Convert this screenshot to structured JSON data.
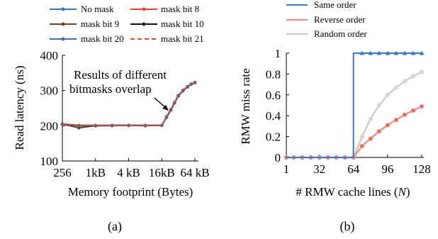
{
  "colors": {
    "no_mask": "#3a78b6",
    "mask_bit_8": "#e24a2c",
    "mask_bit_9": "#6b4a2a",
    "mask_bit_10": "#111111",
    "mask_bit_20": "#3f6fb0",
    "mask_bit_21": "#e24a2c",
    "same_order": "#3a7cc2",
    "reverse_order": "#f08a7e",
    "reverse_marker": "#d9402b",
    "random_order": "#c8c8c8",
    "random_marker": "#b0b0b0"
  },
  "chart_data": [
    {
      "type": "line",
      "caption": "(a)",
      "xlabel": "Memory footprint (Bytes)",
      "ylabel": "Read latency (ns)",
      "xscale": "log2",
      "x_ticks": [
        "256",
        "1kB",
        "4 kB",
        "16kB",
        "64 kB"
      ],
      "x_tick_values": [
        256,
        1024,
        4096,
        16384,
        65536
      ],
      "ylim": [
        100,
        400
      ],
      "y_ticks": [
        "100",
        "200",
        "300",
        "400"
      ],
      "annotation": [
        "Results of different",
        "bitmasks overlap"
      ],
      "x": [
        256,
        512,
        1024,
        2048,
        4096,
        8192,
        16384,
        20000,
        24000,
        28000,
        32768,
        40000,
        48000,
        56000,
        65536
      ],
      "series": [
        {
          "name": "No mask",
          "color_key": "no_mask",
          "marker": "circle",
          "values": [
            205,
            201,
            201,
            201,
            201,
            201,
            201,
            225,
            245,
            265,
            285,
            300,
            310,
            318,
            323
          ]
        },
        {
          "name": "mask bit 8",
          "color_key": "mask_bit_8",
          "marker": "circle",
          "values": [
            204,
            200,
            200,
            201,
            201,
            201,
            201,
            224,
            246,
            266,
            286,
            301,
            311,
            318,
            323
          ]
        },
        {
          "name": "mask bit 9",
          "color_key": "mask_bit_9",
          "marker": "circle",
          "values": [
            205,
            194,
            200,
            200,
            201,
            200,
            201,
            226,
            246,
            266,
            285,
            300,
            310,
            318,
            322
          ]
        },
        {
          "name": "mask bit 10",
          "color_key": "mask_bit_10",
          "marker": "diamond",
          "values": [
            204,
            200,
            200,
            201,
            201,
            201,
            201,
            224,
            245,
            265,
            285,
            300,
            311,
            318,
            323
          ]
        },
        {
          "name": "mask bit 20",
          "color_key": "mask_bit_20",
          "marker": "circle",
          "values": [
            205,
            201,
            201,
            201,
            201,
            201,
            201,
            225,
            246,
            266,
            286,
            301,
            311,
            318,
            323
          ]
        },
        {
          "name": "mask bit 21",
          "color_key": "mask_bit_21",
          "marker": "dash",
          "dashed": true,
          "values": [
            204,
            201,
            201,
            201,
            201,
            201,
            201,
            226,
            247,
            267,
            287,
            301,
            311,
            319,
            324
          ]
        }
      ],
      "legend_placement": "top"
    },
    {
      "type": "line",
      "caption": "(b)",
      "xlabel_prefix": "# RMW cache lines (",
      "xlabel_var": "N",
      "xlabel_suffix": ")",
      "ylabel": "RMW miss rate",
      "xlim": [
        1,
        128
      ],
      "x_ticks": [
        "1",
        "32",
        "64",
        "96",
        "128"
      ],
      "x_tick_values": [
        1,
        32,
        64,
        96,
        128
      ],
      "ylim": [
        0,
        1
      ],
      "y_ticks": [
        "0",
        "0.2",
        "0.4",
        "0.6",
        "0.8",
        "1"
      ],
      "series": [
        {
          "name": "Same order",
          "color_key": "same_order",
          "marker": "triangle",
          "x": [
            1,
            8,
            16,
            24,
            32,
            40,
            48,
            56,
            64,
            64,
            72,
            80,
            88,
            96,
            104,
            112,
            120,
            128
          ],
          "values": [
            0,
            0,
            0,
            0,
            0,
            0,
            0,
            0,
            0,
            1,
            1,
            1,
            1,
            1,
            1,
            1,
            1,
            1
          ]
        },
        {
          "name": "Reverse order",
          "color_key": "reverse_order",
          "marker": "dot",
          "x": [
            1,
            8,
            16,
            24,
            32,
            40,
            48,
            56,
            64,
            72,
            80,
            88,
            96,
            104,
            112,
            120,
            128
          ],
          "values": [
            0,
            0,
            0,
            0,
            0,
            0,
            0,
            0,
            0,
            0.11,
            0.18,
            0.25,
            0.31,
            0.36,
            0.41,
            0.45,
            0.49
          ]
        },
        {
          "name": "Random order",
          "color_key": "random_order",
          "marker": "dot",
          "x": [
            1,
            8,
            16,
            24,
            32,
            40,
            48,
            56,
            64,
            72,
            80,
            88,
            96,
            104,
            112,
            120,
            128
          ],
          "values": [
            0,
            0,
            0,
            0,
            0,
            0,
            0,
            0,
            0,
            0.2,
            0.37,
            0.5,
            0.6,
            0.67,
            0.73,
            0.78,
            0.82
          ]
        }
      ],
      "legend_placement": "top"
    }
  ]
}
